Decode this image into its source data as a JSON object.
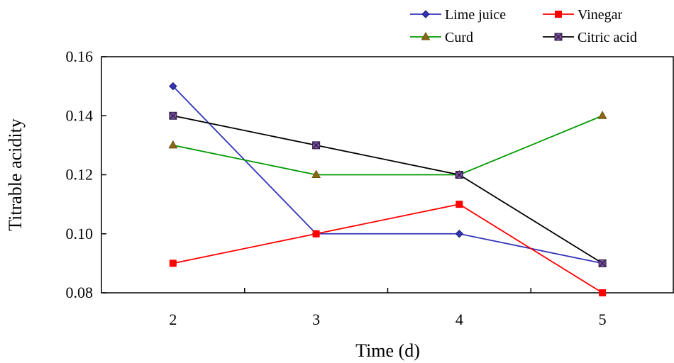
{
  "chart_data": {
    "type": "line",
    "title": "",
    "xlabel": "Time (d)",
    "ylabel": "Titrable acidity",
    "categories": [
      "2",
      "3",
      "4",
      "5"
    ],
    "ylim": [
      0.08,
      0.16
    ],
    "y_ticks": [
      "0.08",
      "0.10",
      "0.12",
      "0.14",
      "0.16"
    ],
    "grid": false,
    "legend_position": "top-right",
    "series": [
      {
        "name": "Lime juice",
        "values": [
          0.15,
          0.1,
          0.1,
          0.09
        ],
        "color": "#3333bb",
        "marker": "diamond"
      },
      {
        "name": "Vinegar",
        "values": [
          0.09,
          0.1,
          0.11,
          0.08
        ],
        "color": "#ff0000",
        "marker": "square"
      },
      {
        "name": "Curd",
        "values": [
          0.13,
          0.12,
          0.12,
          0.14
        ],
        "color": "#009900",
        "marker": "triangle"
      },
      {
        "name": "Citric acid",
        "values": [
          0.14,
          0.13,
          0.12,
          0.09
        ],
        "color": "#000000",
        "marker": "square-x"
      }
    ]
  }
}
